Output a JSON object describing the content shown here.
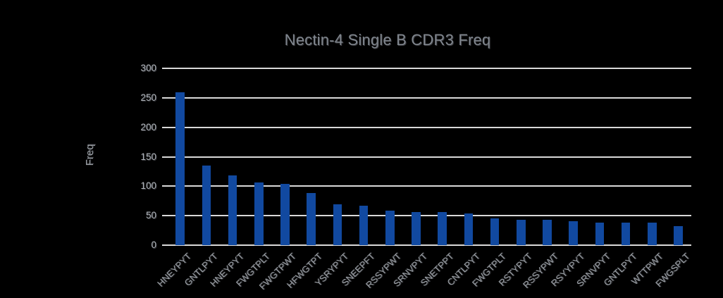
{
  "chart_data": {
    "type": "bar",
    "title": "Nectin-4 Single B CDR3 Freq",
    "xlabel": "",
    "ylabel": "Freq",
    "ylim": [
      0,
      300
    ],
    "yticks": [
      0,
      50,
      100,
      150,
      200,
      250,
      300
    ],
    "grid": true,
    "legend_position": "none",
    "bar_color": "#1149a0",
    "gridline_color": "#d9d9d9",
    "background_color": "#000000",
    "title_color": "#7f858d",
    "label_color": "#9ba0a6",
    "categories": [
      "HNEYPYT",
      "GNTLPYT",
      "HNEYPYT",
      "FWGTPLT",
      "FWGTPWT",
      "HFWGTPT",
      "YSRYPYT",
      "SNEEPFT",
      "RSSYPWT",
      "SRNVPYT",
      "SNETPPT",
      "CNTLPYT",
      "FWGTPLT",
      "RSTYPYT",
      "RSSYPWT",
      "RSYYPYT",
      "SRNVPYT",
      "GNTLPYT",
      "WTTPWT",
      "FWGSPLT"
    ],
    "values": [
      260,
      135,
      118,
      106,
      104,
      88,
      69,
      67,
      59,
      56,
      56,
      54,
      46,
      43,
      43,
      41,
      38,
      38,
      38,
      32
    ]
  }
}
